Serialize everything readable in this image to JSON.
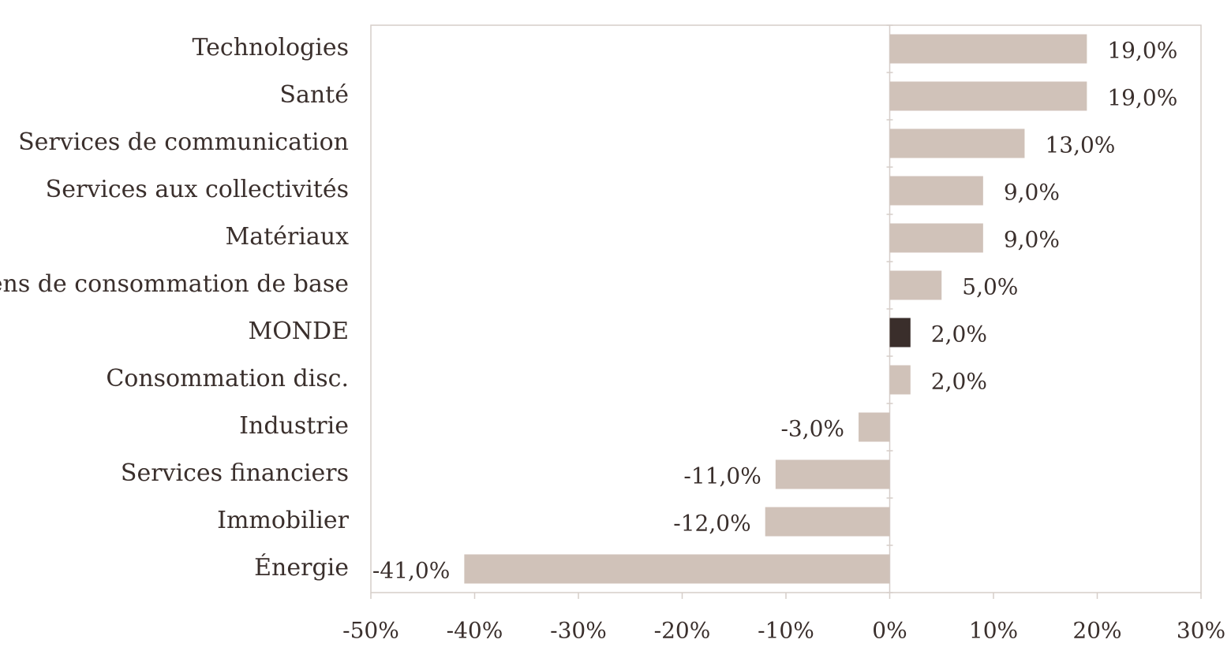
{
  "chart_data": {
    "type": "bar",
    "orientation": "horizontal",
    "categories": [
      "Technologies",
      "Santé",
      "Services de communication",
      "Services aux collectivités",
      "Matériaux",
      "Biens de consommation de base",
      "MONDE",
      "Consommation disc.",
      "Industrie",
      "Services financiers",
      "Immobilier",
      "Énergie"
    ],
    "values": [
      19,
      19,
      13,
      9,
      9,
      5,
      2,
      2,
      -3,
      -11,
      -12,
      -41
    ],
    "value_labels": [
      "19,0%",
      "19,0%",
      "13,0%",
      "9,0%",
      "9,0%",
      "5,0%",
      "2,0%",
      "2,0%",
      "-3,0%",
      "-11,0%",
      "-12,0%",
      "-41,0%"
    ],
    "highlight_category": "MONDE",
    "xlim": [
      -50,
      30
    ],
    "x_ticks": [
      -50,
      -40,
      -30,
      -20,
      -10,
      0,
      10,
      20,
      30
    ],
    "x_tick_labels": [
      "-50%",
      "-40%",
      "-30%",
      "-20%",
      "-10%",
      "0%",
      "10%",
      "20%",
      "30%"
    ],
    "title": "",
    "xlabel": "",
    "ylabel": "",
    "grid": false,
    "legend": "none",
    "colors": {
      "bar": "#d0c2b9",
      "highlight": "#3a2e2b",
      "frame": "#d6cec9",
      "text": "#3a2f2c"
    }
  }
}
